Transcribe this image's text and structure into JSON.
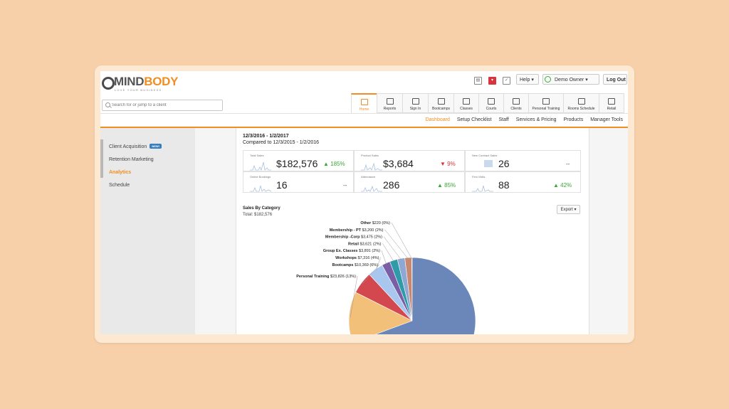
{
  "app": {
    "brand_part1": "MIND",
    "brand_part2": "BODY",
    "tagline": "LOVE YOUR BUSINESS"
  },
  "header": {
    "help_label": "Help",
    "user_label": "Demo Owner",
    "logout_label": "Log Out",
    "icons": [
      "document-icon",
      "notification-icon",
      "checkbox-icon",
      "clock-icon"
    ]
  },
  "search": {
    "placeholder": "Search for or jump to a client"
  },
  "top_tabs": [
    {
      "label": "Home",
      "icon": "home-icon",
      "active": true
    },
    {
      "label": "Reports",
      "icon": "bar-chart-icon"
    },
    {
      "label": "Sign In",
      "icon": "person-icon"
    },
    {
      "label": "Bootcamps",
      "icon": "calendar-icon"
    },
    {
      "label": "Classes",
      "icon": "list-icon"
    },
    {
      "label": "Courts",
      "icon": "calendar-icon"
    },
    {
      "label": "Clients",
      "icon": "person-icon"
    },
    {
      "label": "Personal Training",
      "icon": "calendar-icon"
    },
    {
      "label": "Rooms Schedule",
      "icon": "door-icon"
    },
    {
      "label": "Retail",
      "icon": "register-icon"
    }
  ],
  "sub_nav": [
    {
      "label": "Dashboard",
      "active": true
    },
    {
      "label": "Setup Checklist"
    },
    {
      "label": "Staff"
    },
    {
      "label": "Services & Pricing"
    },
    {
      "label": "Products"
    },
    {
      "label": "Manager Tools"
    }
  ],
  "sidebar": {
    "items": [
      {
        "label": "Client Acquisition",
        "badge": "NEW!"
      },
      {
        "label": "Retention Marketing"
      },
      {
        "label": "Analytics",
        "active": true
      },
      {
        "label": "Schedule"
      }
    ]
  },
  "dashboard": {
    "date_range": "12/3/2016 - 1/2/2017",
    "compare_range": "Compared to 12/3/2015 - 1/2/2016",
    "kpis": [
      {
        "label": "Total Sales",
        "value": "$182,576",
        "change": "185%",
        "direction": "up"
      },
      {
        "label": "Product Sales",
        "value": "$3,684",
        "change": "9%",
        "direction": "down"
      },
      {
        "label": "New Contract Sales",
        "value": "26",
        "change": "--",
        "direction": "flat"
      },
      {
        "label": "Online Bookings",
        "value": "16",
        "change": "--",
        "direction": "flat"
      },
      {
        "label": "Attendance",
        "value": "286",
        "change": "85%",
        "direction": "up"
      },
      {
        "label": "First Visits",
        "value": "88",
        "change": "42%",
        "direction": "up"
      }
    ],
    "sales_title": "Sales By Category",
    "sales_total": "Total: $182,576",
    "export_label": "Export",
    "colors": {
      "accent": "#f38d21",
      "up": "#39a935",
      "down": "#d8343e"
    }
  },
  "chart_data": {
    "type": "pie",
    "title": "Sales By Category",
    "slices": [
      {
        "label": "Other $220 (0%)",
        "value": 220,
        "color": "#a6a6a6"
      },
      {
        "label": "Membership - PT $3,200 (2%)",
        "value": 3200,
        "color": "#c88870"
      },
      {
        "label": "Membership -Corp $3,475 (2%)",
        "value": 3475,
        "color": "#8fa8d3"
      },
      {
        "label": "Retail $3,621 (2%)",
        "value": 3621,
        "color": "#2f9aa8"
      },
      {
        "label": "Group Ex. Classes $3,891 (2%)",
        "value": 3891,
        "color": "#7b5fa6"
      },
      {
        "label": "Workshops $7,316 (4%)",
        "value": 7316,
        "color": "#a9c7ee"
      },
      {
        "label": "Bootcamps $10,369 (6%)",
        "value": 10369,
        "color": "#d2484e"
      },
      {
        "label": "Personal Training $23,826 (13%)",
        "value": 23826,
        "color": "#f3c07a"
      },
      {
        "label": "",
        "value": 126658,
        "color": "#6b87ba"
      }
    ]
  }
}
